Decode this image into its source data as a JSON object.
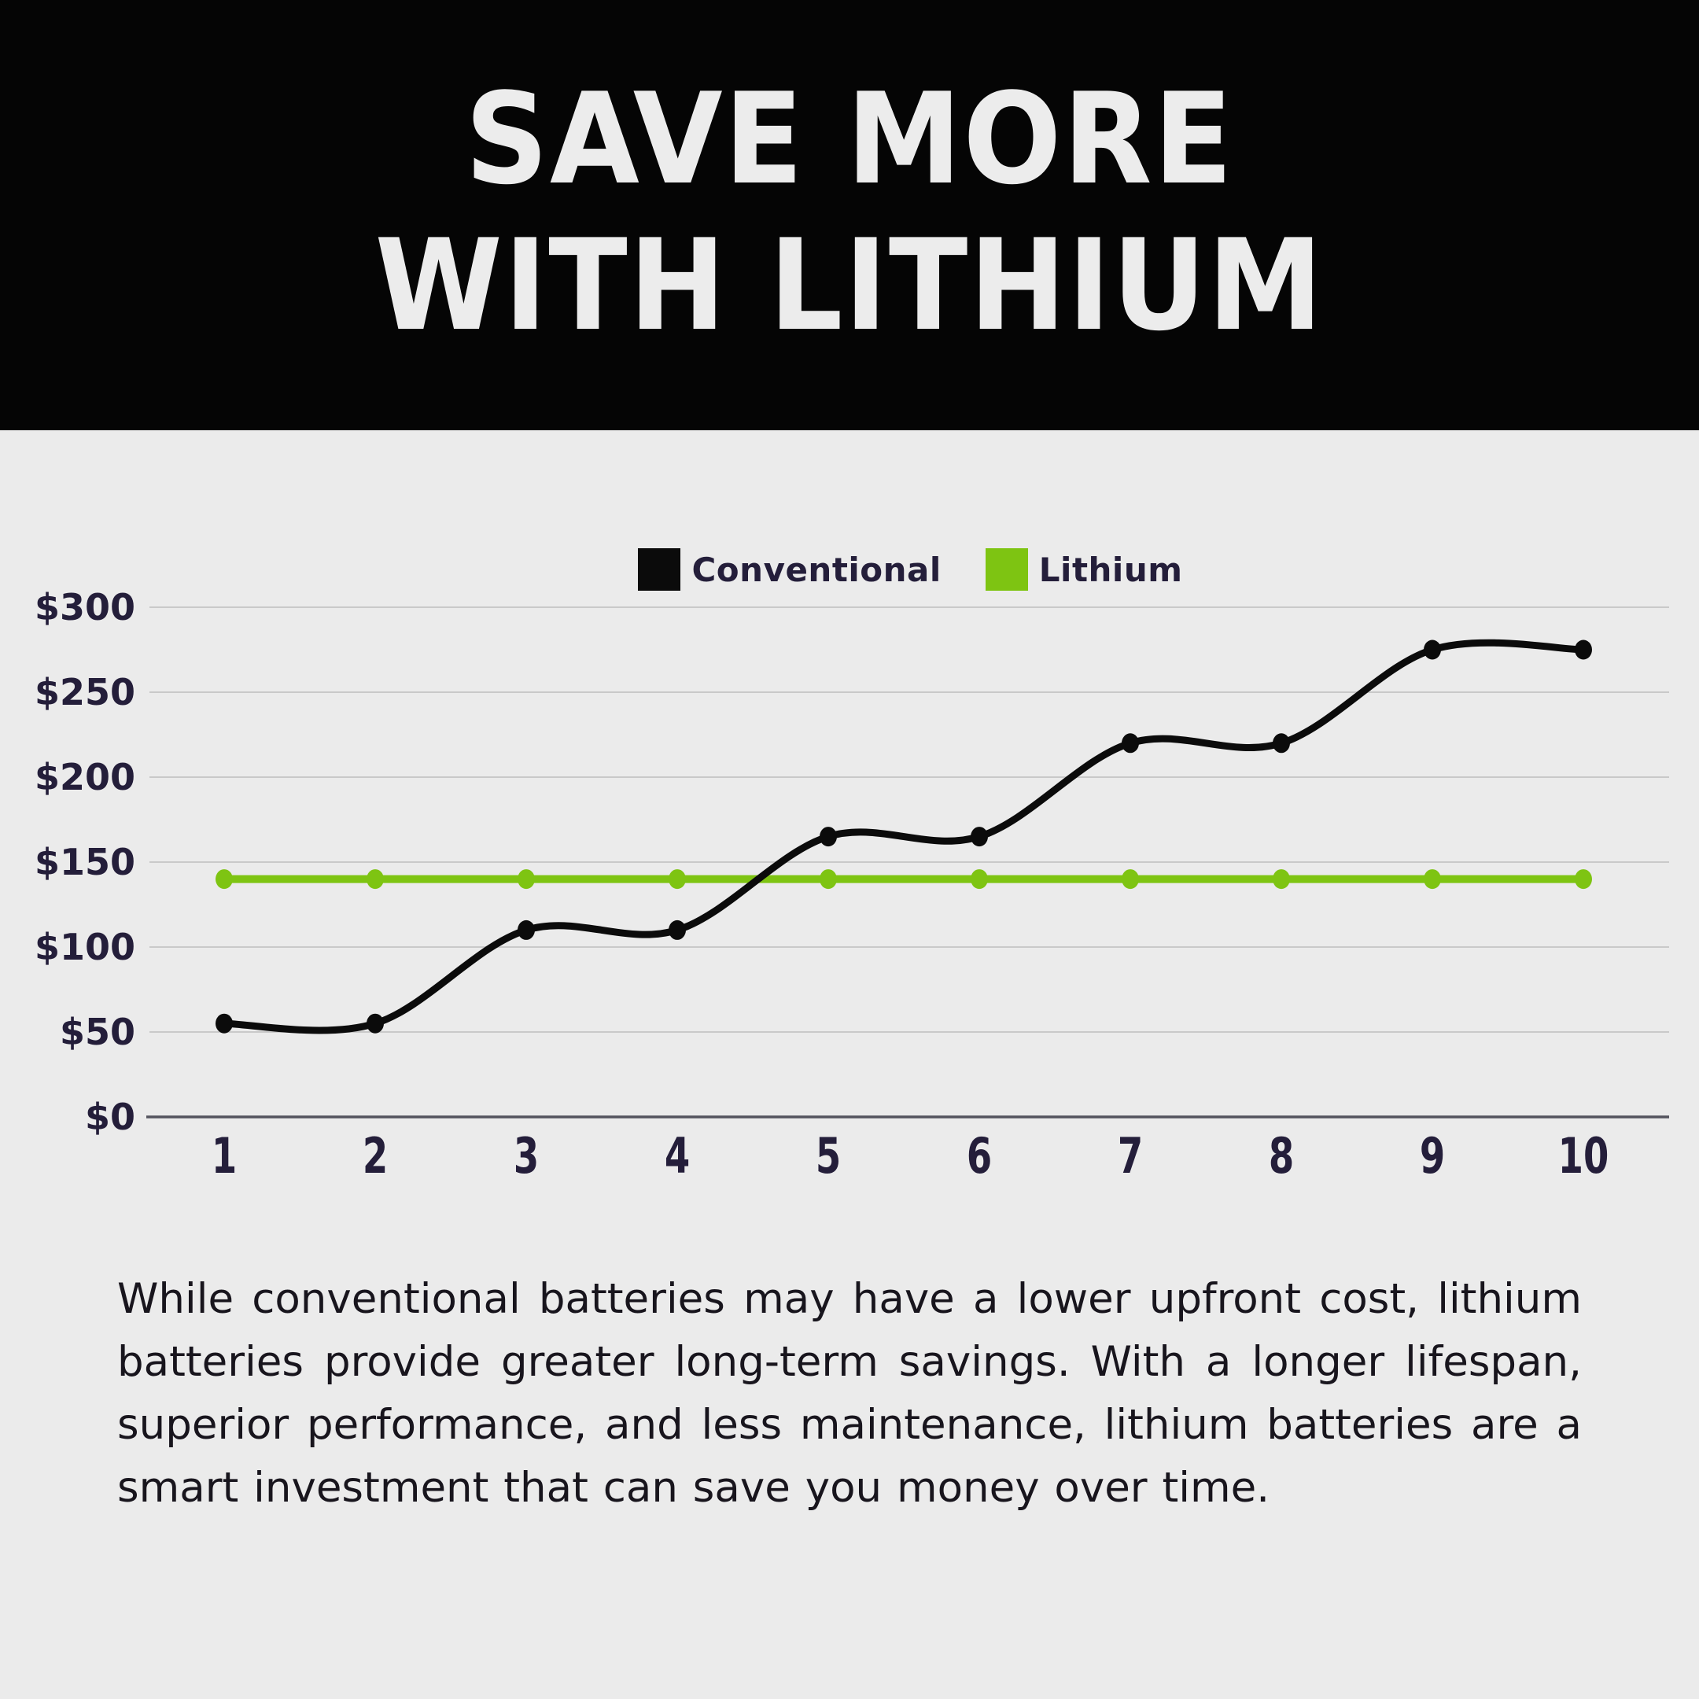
{
  "header": {
    "title": "SAVE MORE WITH LITHIUM",
    "title_line1": "SAVE MORE",
    "title_line2": "WITH LITHIUM"
  },
  "legend": {
    "items": [
      {
        "label": "Conventional",
        "color": "#0b0b0b"
      },
      {
        "label": "Lithium",
        "color": "#7ec412"
      }
    ]
  },
  "chart_data": {
    "type": "line",
    "title": "",
    "xlabel": "",
    "ylabel": "",
    "x": [
      1,
      2,
      3,
      4,
      5,
      6,
      7,
      8,
      9,
      10
    ],
    "series": [
      {
        "name": "Conventional",
        "color": "#0b0b0b",
        "smooth": true,
        "values": [
          55,
          55,
          110,
          110,
          165,
          165,
          220,
          220,
          275,
          275
        ]
      },
      {
        "name": "Lithium",
        "color": "#7ec412",
        "smooth": false,
        "values": [
          140,
          140,
          140,
          140,
          140,
          140,
          140,
          140,
          140,
          140
        ]
      }
    ],
    "ylim": [
      0,
      300
    ],
    "ytick_step": 50,
    "ytick_labels": [
      "$0",
      "$50",
      "$100",
      "$150",
      "$200",
      "$250",
      "$300"
    ],
    "grid": true,
    "legend_position": "top-center",
    "grid_color": "#c9c9c9",
    "axis_color": "#54545e",
    "tick_label_color": "#241e3a"
  },
  "body": {
    "paragraph": "While conventional batteries may have a lower upfront cost, lithium batteries provide greater long-term savings. With a longer lifespan, superior performance, and less maintenance, lithium batteries are a smart investment that can save you money over time."
  },
  "colors": {
    "page_bg": "#ebebeb",
    "header_bg": "#050505",
    "title_text": "#ececec",
    "body_text": "#18151d"
  }
}
